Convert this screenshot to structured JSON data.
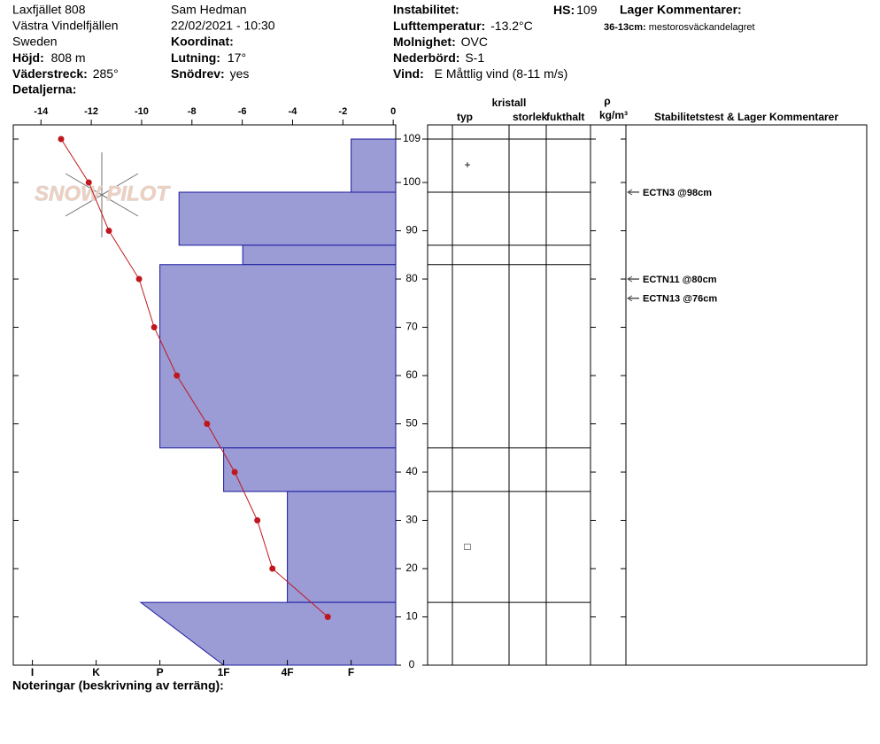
{
  "header": {
    "location": "Laxfjället 808",
    "region": "Västra Vindelfjällen",
    "country": "Sweden",
    "elevation_label": "Höjd:",
    "elevation": "808 m",
    "aspect_label": "Väderstreck:",
    "aspect": "285°",
    "details_label": "Detaljerna:",
    "observer": "Sam Hedman",
    "datetime": "22/02/2021 - 10:30",
    "coordinate_label": "Koordinat:",
    "slope_label": "Lutning:",
    "slope": "17°",
    "drift_label": "Snödrev:",
    "drift": "yes",
    "instability_label": "Instabilitet:",
    "air_temp_label": "Lufttemperatur:",
    "air_temp": "-13.2°C",
    "sky_label": "Molnighet:",
    "sky": "OVC",
    "precip_label": "Nederbörd:",
    "precip": "S-1",
    "wind_label": "Vind:",
    "wind": "E Måttlig vind (8-11 m/s)",
    "hs_label": "HS:",
    "hs": "109",
    "layer_comments_label": "Lager Kommentarer:",
    "layer_comment_range": "36-13cm:",
    "layer_comment": "mestorosväckandelagret"
  },
  "logo": "SNOW PILOT",
  "footer": "Noteringar (beskrivning av terräng):",
  "chart_data": {
    "type": "snow-profile",
    "ylim": [
      0,
      109
    ],
    "yticks": [
      0,
      10,
      20,
      30,
      40,
      50,
      60,
      70,
      80,
      90,
      100,
      109
    ],
    "xlim": [
      -15.1,
      0.1
    ],
    "xticks": [
      -14,
      -12,
      -10,
      -8,
      -6,
      -4,
      -2,
      0
    ],
    "hardness_lim": [
      6.3,
      0.3
    ],
    "hardness_ticks": [
      {
        "value": 6,
        "label": "I"
      },
      {
        "value": 5,
        "label": "K"
      },
      {
        "value": 4,
        "label": "P"
      },
      {
        "value": 3,
        "label": "1F"
      },
      {
        "value": 2,
        "label": "4F"
      },
      {
        "value": 1,
        "label": "F"
      }
    ],
    "hardness_color": "#9b9bd6",
    "temperature": {
      "color": "#c0161c",
      "depths": [
        109,
        100,
        90,
        80,
        70,
        60,
        50,
        40,
        30,
        20,
        10
      ],
      "values": [
        -13.2,
        -12.1,
        -11.3,
        -10.1,
        -9.5,
        -8.6,
        -7.4,
        -6.3,
        -5.4,
        -4.8,
        -2.6
      ]
    },
    "layers": [
      {
        "top": 109,
        "bottom": 98,
        "hardness": 1
      },
      {
        "top": 98,
        "bottom": 87,
        "hardness": 3.7
      },
      {
        "top": 87,
        "bottom": 83,
        "hardness": 2.7
      },
      {
        "top": 83,
        "bottom": 45,
        "hardness": 4
      },
      {
        "top": 45,
        "bottom": 36,
        "hardness": 3
      },
      {
        "top": 36,
        "bottom": 13,
        "hardness": 2
      },
      {
        "top": 13,
        "bottom": 0,
        "hardness": 4.3,
        "hardness_bottom": 3
      }
    ],
    "grains": [
      {
        "depth": 103.5,
        "symbol": "+"
      },
      {
        "depth": 24.4,
        "symbol": "□"
      }
    ],
    "tests": [
      {
        "depth": 98,
        "text": "ECTN3 @98cm"
      },
      {
        "depth": 80,
        "text": "ECTN11 @80cm"
      },
      {
        "depth": 76,
        "text": "ECTN13 @76cm"
      }
    ],
    "columns": {
      "crystal": "kristall",
      "type": "typ",
      "size": "storlek",
      "moisture": "fukthalt",
      "density_symbol": "ρ",
      "density_unit": "kg/m³",
      "comments": "Stabilitetstest & Lager Kommentarer"
    }
  }
}
